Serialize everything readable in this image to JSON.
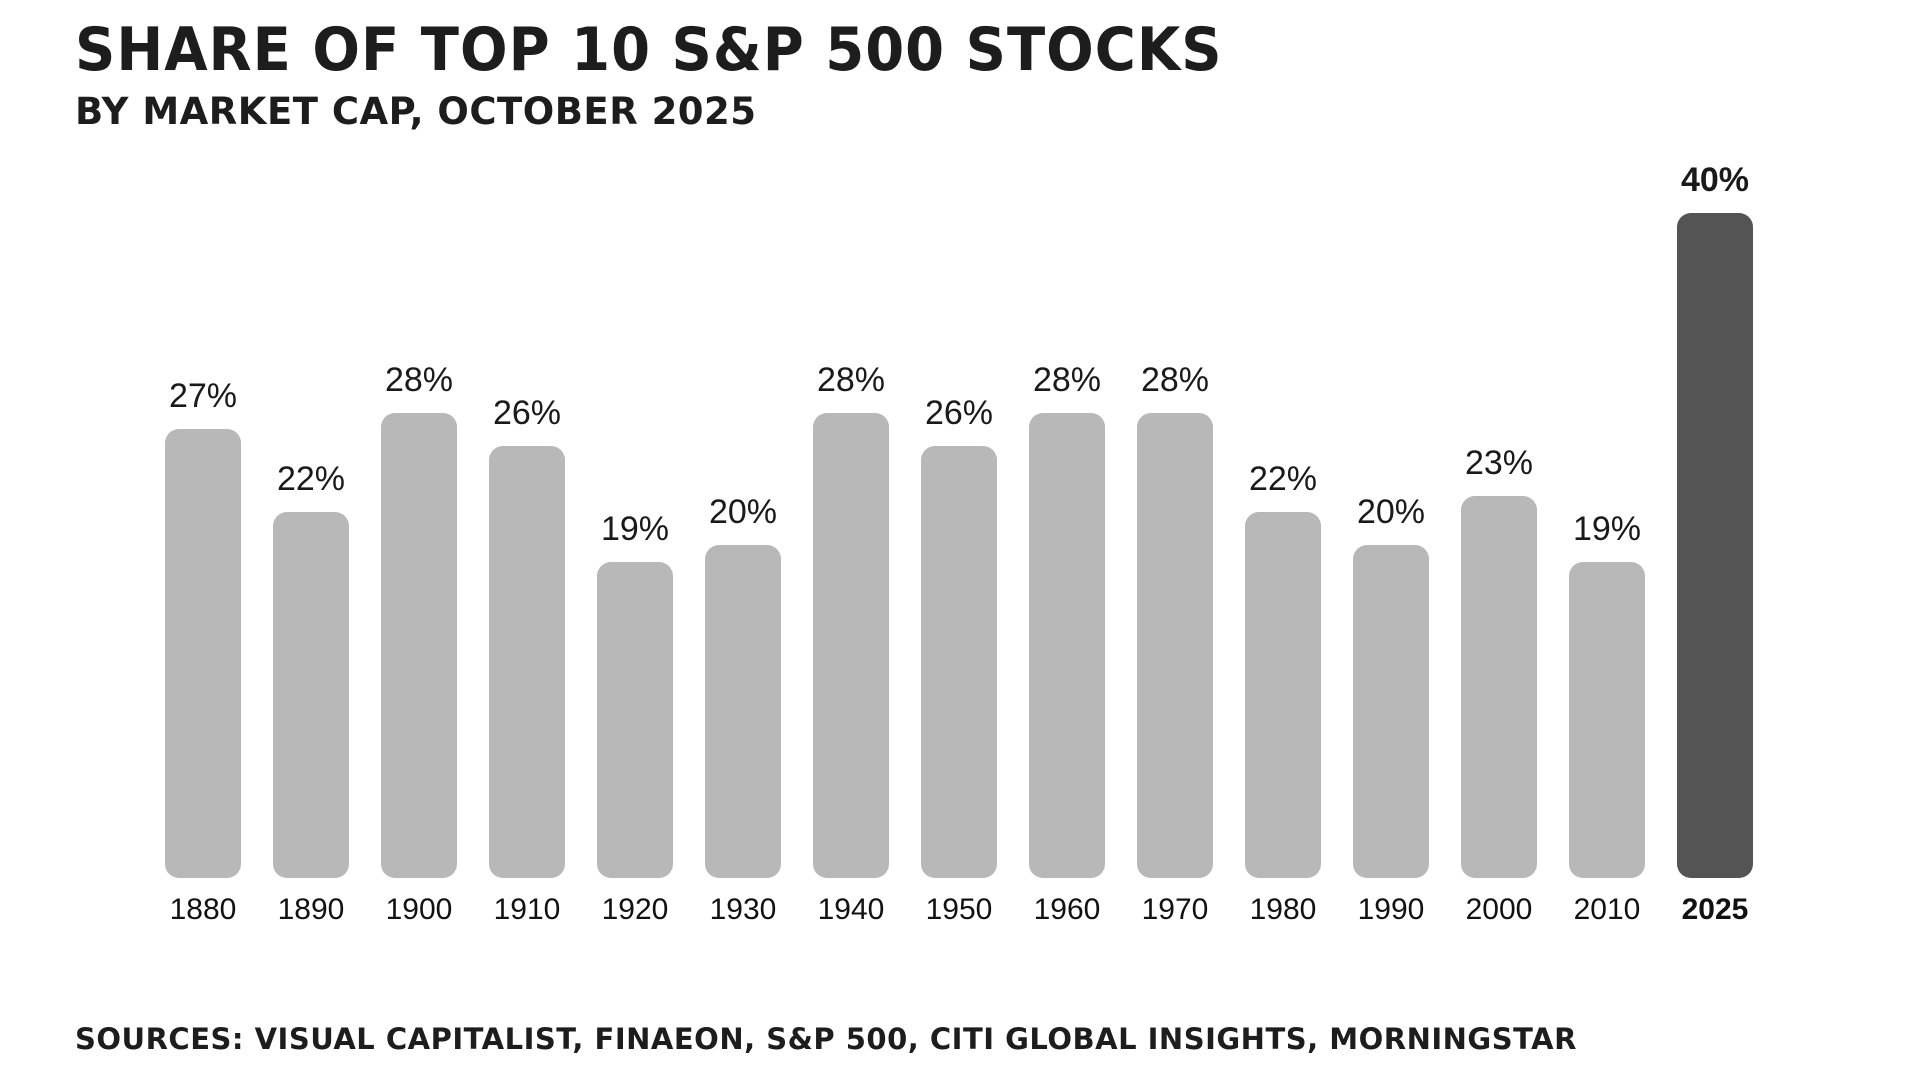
{
  "header": {
    "title": "SHARE OF TOP 10 S&P 500 STOCKS",
    "subtitle": "BY MARKET CAP, OCTOBER 2025"
  },
  "footer": {
    "sources": "SOURCES: VISUAL CAPITALIST, FINAEON, S&P 500, CITI GLOBAL INSIGHTS, MORNINGSTAR"
  },
  "colors": {
    "background": "#ffffff",
    "bar_default": "#b8b8b8",
    "bar_highlight": "#545454",
    "text": "#1c1c1c"
  },
  "chart_data": {
    "type": "bar",
    "title": "SHARE OF TOP 10 S&P 500 STOCKS",
    "subtitle": "BY MARKET CAP, OCTOBER 2025",
    "categories": [
      "1880",
      "1890",
      "1900",
      "1910",
      "1920",
      "1930",
      "1940",
      "1950",
      "1960",
      "1970",
      "1980",
      "1990",
      "2000",
      "2010",
      "2025"
    ],
    "values": [
      27,
      22,
      28,
      26,
      19,
      20,
      28,
      26,
      28,
      28,
      22,
      20,
      23,
      19,
      40
    ],
    "value_labels": [
      "27%",
      "22%",
      "28%",
      "26%",
      "19%",
      "20%",
      "28%",
      "26%",
      "28%",
      "28%",
      "22%",
      "20%",
      "23%",
      "19%",
      "40%"
    ],
    "highlight_index": 14,
    "xlabel": "",
    "ylabel": "",
    "ylim": [
      0,
      40
    ],
    "grid": false,
    "legend": false,
    "source_note": "SOURCES: VISUAL CAPITALIST, FINAEON, S&P 500, CITI GLOBAL INSIGHTS, MORNINGSTAR"
  }
}
